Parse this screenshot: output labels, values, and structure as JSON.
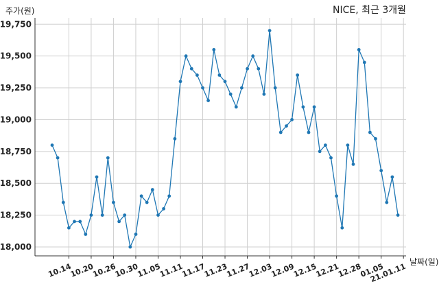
{
  "chart_data": {
    "type": "line",
    "title": "NICE, 최근 3개월",
    "ylabel": "주가(원)",
    "xlabel": "날짜(일)",
    "ylim": [
      17930,
      19800
    ],
    "yticks": [
      18000,
      18250,
      18500,
      18750,
      19000,
      19250,
      19500,
      19750
    ],
    "ytick_labels": [
      "18,000",
      "18,250",
      "18,500",
      "18,750",
      "19,000",
      "19,250",
      "19,500",
      "19,750"
    ],
    "xtick_labels": [
      "10.14",
      "10.20",
      "10.26",
      "10.30",
      "11.05",
      "11.11",
      "11.17",
      "11.23",
      "11.27",
      "12.03",
      "12.09",
      "12.15",
      "12.21",
      "12.28",
      "01.05",
      "21.01.11"
    ],
    "xtick_positions": [
      3,
      7,
      11,
      15,
      19,
      23,
      27,
      31,
      35,
      39,
      43,
      47,
      51,
      55,
      59,
      63
    ],
    "grid": true,
    "series_color": "#1f77b4",
    "series": [
      {
        "values": [
          18800,
          18700,
          18350,
          18150,
          18200,
          18200,
          18100,
          18250,
          18550,
          18250,
          18700,
          18350,
          18200,
          18250,
          18000,
          18100,
          18400,
          18350,
          18450,
          18250,
          18300,
          18400,
          18850,
          19300,
          19500,
          19400,
          19350,
          19250,
          19150,
          19550,
          19350,
          19300,
          19200,
          19100,
          19250,
          19400,
          19500,
          19400,
          19200,
          19700,
          19250,
          18900,
          18950,
          19000,
          19350,
          19100,
          18900,
          19100,
          18750,
          18800,
          18700,
          18400,
          18150,
          18800,
          18650,
          19550,
          19450,
          18900,
          18850,
          18600,
          18350,
          18550,
          18250
        ]
      }
    ]
  }
}
